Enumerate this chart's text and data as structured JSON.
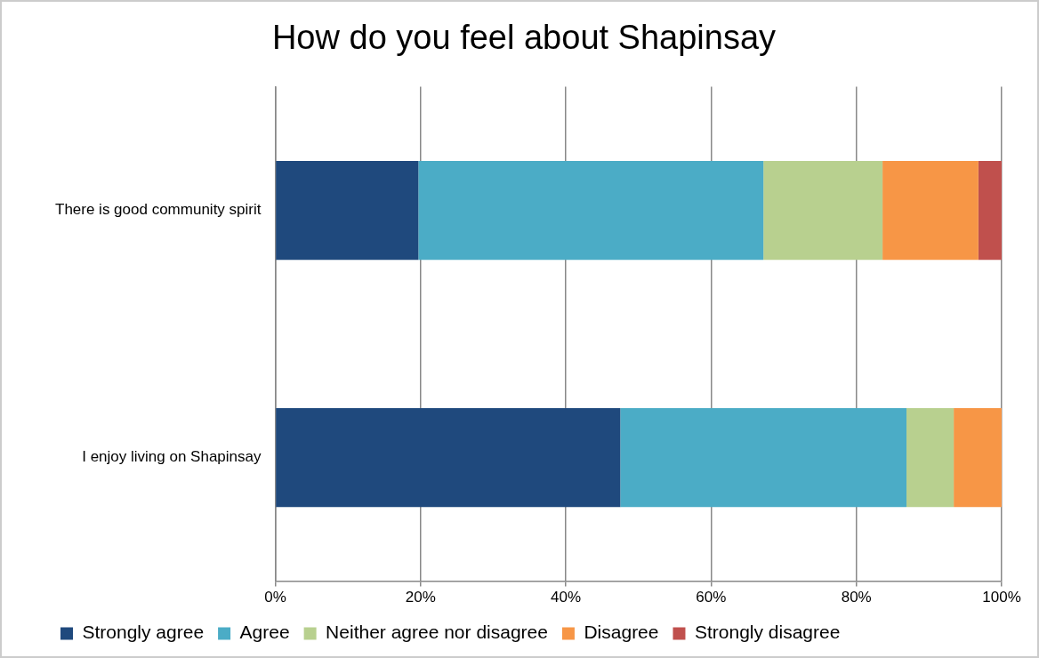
{
  "chart_data": {
    "type": "bar",
    "orientation": "horizontal",
    "stacked": true,
    "title": "How do you feel about Shapinsay",
    "categories": [
      "There is good community spirit",
      "I enjoy living on Shapinsay"
    ],
    "series": [
      {
        "name": "Strongly agree",
        "color": "#1f497d",
        "values": [
          19.7,
          47.5
        ]
      },
      {
        "name": "Agree",
        "color": "#4bacc6",
        "values": [
          47.5,
          39.4
        ]
      },
      {
        "name": "Neither agree nor disagree",
        "color": "#b8d08f",
        "values": [
          16.4,
          6.5
        ]
      },
      {
        "name": "Disagree",
        "color": "#f79646",
        "values": [
          13.2,
          6.6
        ]
      },
      {
        "name": "Strongly disagree",
        "color": "#c0504d",
        "values": [
          3.2,
          null
        ]
      }
    ],
    "xlim": [
      0,
      100
    ],
    "xticks": [
      {
        "value": 0,
        "label": "0%"
      },
      {
        "value": 20,
        "label": "20%"
      },
      {
        "value": 40,
        "label": "40%"
      },
      {
        "value": 60,
        "label": "60%"
      },
      {
        "value": 80,
        "label": "80%"
      },
      {
        "value": 100,
        "label": "100%"
      }
    ],
    "grid": "x",
    "legend": "bottom"
  }
}
